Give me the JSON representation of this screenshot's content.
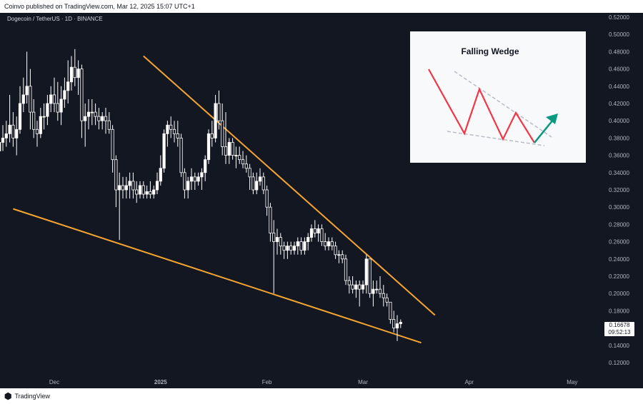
{
  "header": {
    "published": "Coinvo published on TradingView.com, Mar 12, 2025 15:07 UTC+1"
  },
  "symbol": {
    "title": "Dogecoin / TetherUS · 1D · BINANCE"
  },
  "footer": {
    "brand": "TradingView"
  },
  "price_tag": {
    "price": "0.16678",
    "countdown": "09:52:13"
  },
  "colors": {
    "background": "#131722",
    "candle": "#ffffff",
    "trendline": "#f7a531",
    "wedge_line": "#f23645",
    "breakout_arrow": "#089981",
    "wedge_guides": "#b2b5be"
  },
  "inset": {
    "title": "Falling Wedge"
  },
  "chart_data": {
    "type": "candlestick",
    "title": "",
    "y_axis": {
      "ticks": [
        "0.52000",
        "0.50000",
        "0.48000",
        "0.46000",
        "0.44000",
        "0.42000",
        "0.40000",
        "0.38000",
        "0.36000",
        "0.34000",
        "0.32000",
        "0.30000",
        "0.28000",
        "0.26000",
        "0.24000",
        "0.22000",
        "0.20000",
        "0.18000",
        "0.16000",
        "0.14000",
        "0.12000"
      ],
      "range": [
        0.112,
        0.528
      ]
    },
    "x_axis": {
      "ticks": [
        {
          "label": "Dec",
          "date": "2024-12-01"
        },
        {
          "label": "2025",
          "date": "2025-01-01"
        },
        {
          "label": "Feb",
          "date": "2025-02-01"
        },
        {
          "label": "Mar",
          "date": "2025-03-01"
        },
        {
          "label": "Apr",
          "date": "2025-04-01"
        },
        {
          "label": "May",
          "date": "2025-05-01"
        }
      ]
    },
    "trendlines": [
      {
        "name": "upper",
        "points": [
          {
            "date": "2024-12-27",
            "price": 0.475
          },
          {
            "date": "2025-03-22",
            "price": 0.175
          }
        ]
      },
      {
        "name": "lower",
        "points": [
          {
            "date": "2024-11-19",
            "price": 0.298
          },
          {
            "date": "2025-03-18",
            "price": 0.143
          }
        ]
      }
    ],
    "candles": [
      {
        "date": "2024-11-15",
        "o": 0.365,
        "h": 0.385,
        "l": 0.345,
        "c": 0.375
      },
      {
        "date": "2024-11-16",
        "o": 0.375,
        "h": 0.395,
        "l": 0.365,
        "c": 0.38
      },
      {
        "date": "2024-11-17",
        "o": 0.38,
        "h": 0.4,
        "l": 0.37,
        "c": 0.385
      },
      {
        "date": "2024-11-18",
        "o": 0.385,
        "h": 0.43,
        "l": 0.375,
        "c": 0.395
      },
      {
        "date": "2024-11-19",
        "o": 0.395,
        "h": 0.41,
        "l": 0.37,
        "c": 0.38
      },
      {
        "date": "2024-11-20",
        "o": 0.38,
        "h": 0.405,
        "l": 0.36,
        "c": 0.39
      },
      {
        "date": "2024-11-21",
        "o": 0.39,
        "h": 0.44,
        "l": 0.385,
        "c": 0.42
      },
      {
        "date": "2024-11-22",
        "o": 0.42,
        "h": 0.45,
        "l": 0.41,
        "c": 0.43
      },
      {
        "date": "2024-11-23",
        "o": 0.43,
        "h": 0.48,
        "l": 0.42,
        "c": 0.44
      },
      {
        "date": "2024-11-24",
        "o": 0.44,
        "h": 0.46,
        "l": 0.39,
        "c": 0.41
      },
      {
        "date": "2024-11-25",
        "o": 0.41,
        "h": 0.425,
        "l": 0.38,
        "c": 0.39
      },
      {
        "date": "2024-11-26",
        "o": 0.39,
        "h": 0.4,
        "l": 0.37,
        "c": 0.385
      },
      {
        "date": "2024-11-27",
        "o": 0.385,
        "h": 0.415,
        "l": 0.38,
        "c": 0.405
      },
      {
        "date": "2024-11-28",
        "o": 0.405,
        "h": 0.42,
        "l": 0.39,
        "c": 0.405
      },
      {
        "date": "2024-11-29",
        "o": 0.405,
        "h": 0.43,
        "l": 0.395,
        "c": 0.42
      },
      {
        "date": "2024-11-30",
        "o": 0.42,
        "h": 0.44,
        "l": 0.41,
        "c": 0.43
      },
      {
        "date": "2024-12-01",
        "o": 0.43,
        "h": 0.45,
        "l": 0.41,
        "c": 0.42
      },
      {
        "date": "2024-12-02",
        "o": 0.42,
        "h": 0.445,
        "l": 0.4,
        "c": 0.41
      },
      {
        "date": "2024-12-03",
        "o": 0.41,
        "h": 0.44,
        "l": 0.395,
        "c": 0.425
      },
      {
        "date": "2024-12-04",
        "o": 0.425,
        "h": 0.45,
        "l": 0.415,
        "c": 0.435
      },
      {
        "date": "2024-12-05",
        "o": 0.435,
        "h": 0.47,
        "l": 0.42,
        "c": 0.445
      },
      {
        "date": "2024-12-06",
        "o": 0.445,
        "h": 0.475,
        "l": 0.435,
        "c": 0.462
      },
      {
        "date": "2024-12-07",
        "o": 0.462,
        "h": 0.483,
        "l": 0.44,
        "c": 0.45
      },
      {
        "date": "2024-12-08",
        "o": 0.45,
        "h": 0.47,
        "l": 0.43,
        "c": 0.46
      },
      {
        "date": "2024-12-09",
        "o": 0.46,
        "h": 0.465,
        "l": 0.38,
        "c": 0.4
      },
      {
        "date": "2024-12-10",
        "o": 0.4,
        "h": 0.42,
        "l": 0.37,
        "c": 0.405
      },
      {
        "date": "2024-12-11",
        "o": 0.405,
        "h": 0.425,
        "l": 0.39,
        "c": 0.41
      },
      {
        "date": "2024-12-12",
        "o": 0.41,
        "h": 0.425,
        "l": 0.395,
        "c": 0.41
      },
      {
        "date": "2024-12-13",
        "o": 0.41,
        "h": 0.42,
        "l": 0.395,
        "c": 0.405
      },
      {
        "date": "2024-12-14",
        "o": 0.405,
        "h": 0.415,
        "l": 0.39,
        "c": 0.4
      },
      {
        "date": "2024-12-15",
        "o": 0.4,
        "h": 0.41,
        "l": 0.39,
        "c": 0.405
      },
      {
        "date": "2024-12-16",
        "o": 0.405,
        "h": 0.415,
        "l": 0.385,
        "c": 0.4
      },
      {
        "date": "2024-12-17",
        "o": 0.4,
        "h": 0.41,
        "l": 0.385,
        "c": 0.39
      },
      {
        "date": "2024-12-18",
        "o": 0.39,
        "h": 0.395,
        "l": 0.34,
        "c": 0.355
      },
      {
        "date": "2024-12-19",
        "o": 0.355,
        "h": 0.36,
        "l": 0.3,
        "c": 0.32
      },
      {
        "date": "2024-12-20",
        "o": 0.32,
        "h": 0.34,
        "l": 0.262,
        "c": 0.325
      },
      {
        "date": "2024-12-21",
        "o": 0.325,
        "h": 0.335,
        "l": 0.31,
        "c": 0.32
      },
      {
        "date": "2024-12-22",
        "o": 0.32,
        "h": 0.335,
        "l": 0.31,
        "c": 0.325
      },
      {
        "date": "2024-12-23",
        "o": 0.325,
        "h": 0.34,
        "l": 0.31,
        "c": 0.33
      },
      {
        "date": "2024-12-24",
        "o": 0.33,
        "h": 0.34,
        "l": 0.31,
        "c": 0.32
      },
      {
        "date": "2024-12-25",
        "o": 0.32,
        "h": 0.33,
        "l": 0.305,
        "c": 0.315
      },
      {
        "date": "2024-12-26",
        "o": 0.315,
        "h": 0.33,
        "l": 0.31,
        "c": 0.325
      },
      {
        "date": "2024-12-27",
        "o": 0.325,
        "h": 0.33,
        "l": 0.31,
        "c": 0.315
      },
      {
        "date": "2024-12-28",
        "o": 0.315,
        "h": 0.325,
        "l": 0.31,
        "c": 0.318
      },
      {
        "date": "2024-12-29",
        "o": 0.318,
        "h": 0.33,
        "l": 0.31,
        "c": 0.315
      },
      {
        "date": "2024-12-30",
        "o": 0.315,
        "h": 0.325,
        "l": 0.31,
        "c": 0.32
      },
      {
        "date": "2024-12-31",
        "o": 0.32,
        "h": 0.34,
        "l": 0.315,
        "c": 0.33
      },
      {
        "date": "2025-01-01",
        "o": 0.33,
        "h": 0.36,
        "l": 0.325,
        "c": 0.345
      },
      {
        "date": "2025-01-02",
        "o": 0.345,
        "h": 0.39,
        "l": 0.34,
        "c": 0.385
      },
      {
        "date": "2025-01-03",
        "o": 0.385,
        "h": 0.4,
        "l": 0.37,
        "c": 0.395
      },
      {
        "date": "2025-01-04",
        "o": 0.395,
        "h": 0.405,
        "l": 0.38,
        "c": 0.39
      },
      {
        "date": "2025-01-05",
        "o": 0.39,
        "h": 0.4,
        "l": 0.375,
        "c": 0.385
      },
      {
        "date": "2025-01-06",
        "o": 0.385,
        "h": 0.4,
        "l": 0.37,
        "c": 0.38
      },
      {
        "date": "2025-01-07",
        "o": 0.38,
        "h": 0.385,
        "l": 0.335,
        "c": 0.34
      },
      {
        "date": "2025-01-08",
        "o": 0.34,
        "h": 0.345,
        "l": 0.31,
        "c": 0.32
      },
      {
        "date": "2025-01-09",
        "o": 0.32,
        "h": 0.335,
        "l": 0.31,
        "c": 0.33
      },
      {
        "date": "2025-01-10",
        "o": 0.33,
        "h": 0.345,
        "l": 0.32,
        "c": 0.335
      },
      {
        "date": "2025-01-11",
        "o": 0.335,
        "h": 0.34,
        "l": 0.32,
        "c": 0.33
      },
      {
        "date": "2025-01-12",
        "o": 0.33,
        "h": 0.34,
        "l": 0.325,
        "c": 0.335
      },
      {
        "date": "2025-01-13",
        "o": 0.335,
        "h": 0.345,
        "l": 0.32,
        "c": 0.34
      },
      {
        "date": "2025-01-14",
        "o": 0.34,
        "h": 0.36,
        "l": 0.33,
        "c": 0.355
      },
      {
        "date": "2025-01-15",
        "o": 0.355,
        "h": 0.39,
        "l": 0.35,
        "c": 0.385
      },
      {
        "date": "2025-01-16",
        "o": 0.385,
        "h": 0.4,
        "l": 0.37,
        "c": 0.38
      },
      {
        "date": "2025-01-17",
        "o": 0.38,
        "h": 0.43,
        "l": 0.375,
        "c": 0.42
      },
      {
        "date": "2025-01-18",
        "o": 0.42,
        "h": 0.435,
        "l": 0.39,
        "c": 0.4
      },
      {
        "date": "2025-01-19",
        "o": 0.4,
        "h": 0.42,
        "l": 0.36,
        "c": 0.37
      },
      {
        "date": "2025-01-20",
        "o": 0.37,
        "h": 0.41,
        "l": 0.35,
        "c": 0.36
      },
      {
        "date": "2025-01-21",
        "o": 0.36,
        "h": 0.38,
        "l": 0.35,
        "c": 0.375
      },
      {
        "date": "2025-01-22",
        "o": 0.375,
        "h": 0.38,
        "l": 0.355,
        "c": 0.36
      },
      {
        "date": "2025-01-23",
        "o": 0.36,
        "h": 0.37,
        "l": 0.345,
        "c": 0.36
      },
      {
        "date": "2025-01-24",
        "o": 0.36,
        "h": 0.37,
        "l": 0.35,
        "c": 0.355
      },
      {
        "date": "2025-01-25",
        "o": 0.355,
        "h": 0.365,
        "l": 0.345,
        "c": 0.35
      },
      {
        "date": "2025-01-26",
        "o": 0.35,
        "h": 0.36,
        "l": 0.34,
        "c": 0.345
      },
      {
        "date": "2025-01-27",
        "o": 0.345,
        "h": 0.35,
        "l": 0.32,
        "c": 0.335
      },
      {
        "date": "2025-01-28",
        "o": 0.335,
        "h": 0.34,
        "l": 0.315,
        "c": 0.32
      },
      {
        "date": "2025-01-29",
        "o": 0.32,
        "h": 0.34,
        "l": 0.315,
        "c": 0.33
      },
      {
        "date": "2025-01-30",
        "o": 0.33,
        "h": 0.345,
        "l": 0.325,
        "c": 0.335
      },
      {
        "date": "2025-01-31",
        "o": 0.335,
        "h": 0.34,
        "l": 0.315,
        "c": 0.32
      },
      {
        "date": "2025-02-01",
        "o": 0.32,
        "h": 0.325,
        "l": 0.29,
        "c": 0.3
      },
      {
        "date": "2025-02-02",
        "o": 0.3,
        "h": 0.305,
        "l": 0.26,
        "c": 0.27
      },
      {
        "date": "2025-02-03",
        "o": 0.27,
        "h": 0.285,
        "l": 0.2,
        "c": 0.26
      },
      {
        "date": "2025-02-04",
        "o": 0.26,
        "h": 0.275,
        "l": 0.245,
        "c": 0.265
      },
      {
        "date": "2025-02-05",
        "o": 0.265,
        "h": 0.27,
        "l": 0.245,
        "c": 0.255
      },
      {
        "date": "2025-02-06",
        "o": 0.255,
        "h": 0.26,
        "l": 0.24,
        "c": 0.25
      },
      {
        "date": "2025-02-07",
        "o": 0.25,
        "h": 0.26,
        "l": 0.24,
        "c": 0.255
      },
      {
        "date": "2025-02-08",
        "o": 0.255,
        "h": 0.26,
        "l": 0.245,
        "c": 0.25
      },
      {
        "date": "2025-02-09",
        "o": 0.25,
        "h": 0.26,
        "l": 0.245,
        "c": 0.255
      },
      {
        "date": "2025-02-10",
        "o": 0.255,
        "h": 0.265,
        "l": 0.245,
        "c": 0.26
      },
      {
        "date": "2025-02-11",
        "o": 0.26,
        "h": 0.265,
        "l": 0.245,
        "c": 0.25
      },
      {
        "date": "2025-02-12",
        "o": 0.25,
        "h": 0.265,
        "l": 0.245,
        "c": 0.26
      },
      {
        "date": "2025-02-13",
        "o": 0.26,
        "h": 0.27,
        "l": 0.25,
        "c": 0.265
      },
      {
        "date": "2025-02-14",
        "o": 0.265,
        "h": 0.28,
        "l": 0.26,
        "c": 0.275
      },
      {
        "date": "2025-02-15",
        "o": 0.275,
        "h": 0.285,
        "l": 0.265,
        "c": 0.27
      },
      {
        "date": "2025-02-16",
        "o": 0.27,
        "h": 0.28,
        "l": 0.26,
        "c": 0.275
      },
      {
        "date": "2025-02-17",
        "o": 0.275,
        "h": 0.28,
        "l": 0.255,
        "c": 0.26
      },
      {
        "date": "2025-02-18",
        "o": 0.26,
        "h": 0.27,
        "l": 0.25,
        "c": 0.255
      },
      {
        "date": "2025-02-19",
        "o": 0.255,
        "h": 0.265,
        "l": 0.25,
        "c": 0.26
      },
      {
        "date": "2025-02-20",
        "o": 0.26,
        "h": 0.265,
        "l": 0.25,
        "c": 0.255
      },
      {
        "date": "2025-02-21",
        "o": 0.255,
        "h": 0.26,
        "l": 0.24,
        "c": 0.245
      },
      {
        "date": "2025-02-22",
        "o": 0.245,
        "h": 0.25,
        "l": 0.235,
        "c": 0.245
      },
      {
        "date": "2025-02-23",
        "o": 0.245,
        "h": 0.25,
        "l": 0.235,
        "c": 0.24
      },
      {
        "date": "2025-02-24",
        "o": 0.24,
        "h": 0.245,
        "l": 0.21,
        "c": 0.215
      },
      {
        "date": "2025-02-25",
        "o": 0.215,
        "h": 0.22,
        "l": 0.2,
        "c": 0.21
      },
      {
        "date": "2025-02-26",
        "o": 0.21,
        "h": 0.22,
        "l": 0.2,
        "c": 0.205
      },
      {
        "date": "2025-02-27",
        "o": 0.205,
        "h": 0.215,
        "l": 0.195,
        "c": 0.21
      },
      {
        "date": "2025-02-28",
        "o": 0.21,
        "h": 0.215,
        "l": 0.185,
        "c": 0.205
      },
      {
        "date": "2025-03-01",
        "o": 0.205,
        "h": 0.215,
        "l": 0.2,
        "c": 0.21
      },
      {
        "date": "2025-03-02",
        "o": 0.21,
        "h": 0.245,
        "l": 0.2,
        "c": 0.24
      },
      {
        "date": "2025-03-03",
        "o": 0.24,
        "h": 0.24,
        "l": 0.195,
        "c": 0.2
      },
      {
        "date": "2025-03-04",
        "o": 0.2,
        "h": 0.215,
        "l": 0.185,
        "c": 0.205
      },
      {
        "date": "2025-03-05",
        "o": 0.205,
        "h": 0.215,
        "l": 0.2,
        "c": 0.205
      },
      {
        "date": "2025-03-06",
        "o": 0.205,
        "h": 0.22,
        "l": 0.195,
        "c": 0.2
      },
      {
        "date": "2025-03-07",
        "o": 0.2,
        "h": 0.21,
        "l": 0.185,
        "c": 0.195
      },
      {
        "date": "2025-03-08",
        "o": 0.195,
        "h": 0.2,
        "l": 0.185,
        "c": 0.19
      },
      {
        "date": "2025-03-09",
        "o": 0.19,
        "h": 0.19,
        "l": 0.165,
        "c": 0.17
      },
      {
        "date": "2025-03-10",
        "o": 0.17,
        "h": 0.18,
        "l": 0.155,
        "c": 0.16
      },
      {
        "date": "2025-03-11",
        "o": 0.16,
        "h": 0.175,
        "l": 0.145,
        "c": 0.165
      },
      {
        "date": "2025-03-12",
        "o": 0.165,
        "h": 0.17,
        "l": 0.16,
        "c": 0.16678
      }
    ]
  }
}
